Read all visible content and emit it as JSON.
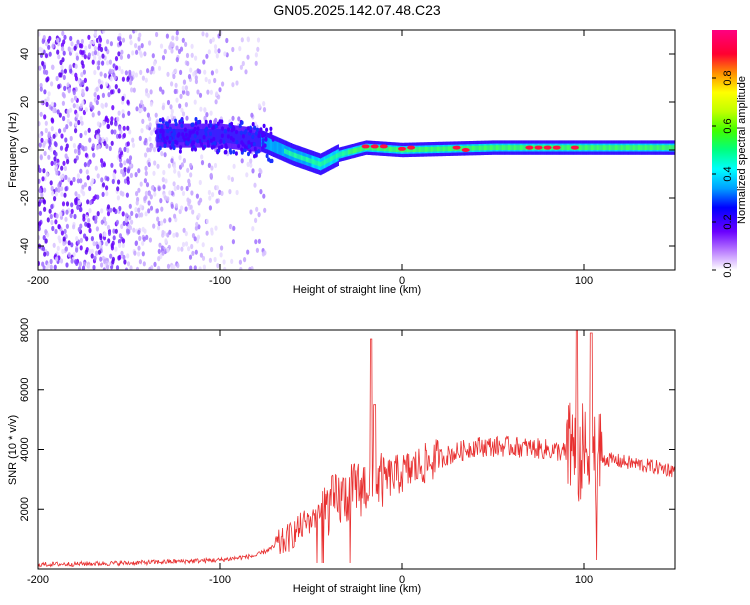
{
  "title": "GN05.2025.142.07.48.C23",
  "chart_data": [
    {
      "type": "heatmap",
      "xlabel": "Height of straight line (km)",
      "ylabel": "Frequency (Hz)",
      "xlim": [
        -200,
        150
      ],
      "ylim": [
        -50,
        50
      ],
      "x_ticks": [
        "-200",
        "-100",
        "0",
        "100"
      ],
      "y_ticks": [
        "-40",
        "-20",
        "0",
        "20",
        "40"
      ],
      "colorbar": {
        "label": "Normalized spectral amplitude",
        "range": [
          0,
          1
        ],
        "ticks": [
          "0.0",
          "0.2",
          "0.4",
          "0.6",
          "0.8"
        ],
        "colors": [
          "#ffffff",
          "#b97cff",
          "#6a00ff",
          "#0000ff",
          "#00a0ff",
          "#00ffff",
          "#00ff80",
          "#40ff00",
          "#c0ff00",
          "#ffff00",
          "#ff9000",
          "#ff0030",
          "#ff0080"
        ]
      },
      "signal_band_center_hz": [
        {
          "x": -135,
          "y": 6
        },
        {
          "x": -100,
          "y": 6
        },
        {
          "x": -78,
          "y": 4
        },
        {
          "x": -60,
          "y": -2
        },
        {
          "x": -45,
          "y": -6
        },
        {
          "x": -35,
          "y": -2
        },
        {
          "x": -20,
          "y": 1
        },
        {
          "x": 0,
          "y": 0
        },
        {
          "x": 50,
          "y": 1
        },
        {
          "x": 100,
          "y": 1
        },
        {
          "x": 150,
          "y": 1
        }
      ]
    },
    {
      "type": "line",
      "xlabel": "Height of straight line (km)",
      "ylabel": "SNR (10 * v/v)",
      "xlim": [
        -200,
        150
      ],
      "ylim": [
        0,
        8000
      ],
      "x_ticks": [
        "-200",
        "-100",
        "0",
        "100"
      ],
      "y_ticks": [
        "2000",
        "4000",
        "6000",
        "8000"
      ],
      "color": "#e83030",
      "trend": [
        {
          "x": -200,
          "y": 150
        },
        {
          "x": -150,
          "y": 200
        },
        {
          "x": -100,
          "y": 300
        },
        {
          "x": -80,
          "y": 450
        },
        {
          "x": -65,
          "y": 900
        },
        {
          "x": -50,
          "y": 1700
        },
        {
          "x": -35,
          "y": 2300
        },
        {
          "x": -20,
          "y": 2800
        },
        {
          "x": 0,
          "y": 3200
        },
        {
          "x": 20,
          "y": 3700
        },
        {
          "x": 40,
          "y": 4100
        },
        {
          "x": 60,
          "y": 4100
        },
        {
          "x": 80,
          "y": 4000
        },
        {
          "x": 100,
          "y": 3800
        },
        {
          "x": 120,
          "y": 3600
        },
        {
          "x": 150,
          "y": 3300
        }
      ],
      "peaks": [
        {
          "x": -17,
          "y": 7700
        },
        {
          "x": -15,
          "y": 5500
        },
        {
          "x": 96,
          "y": 8000
        },
        {
          "x": 104,
          "y": 7900
        }
      ]
    }
  ]
}
